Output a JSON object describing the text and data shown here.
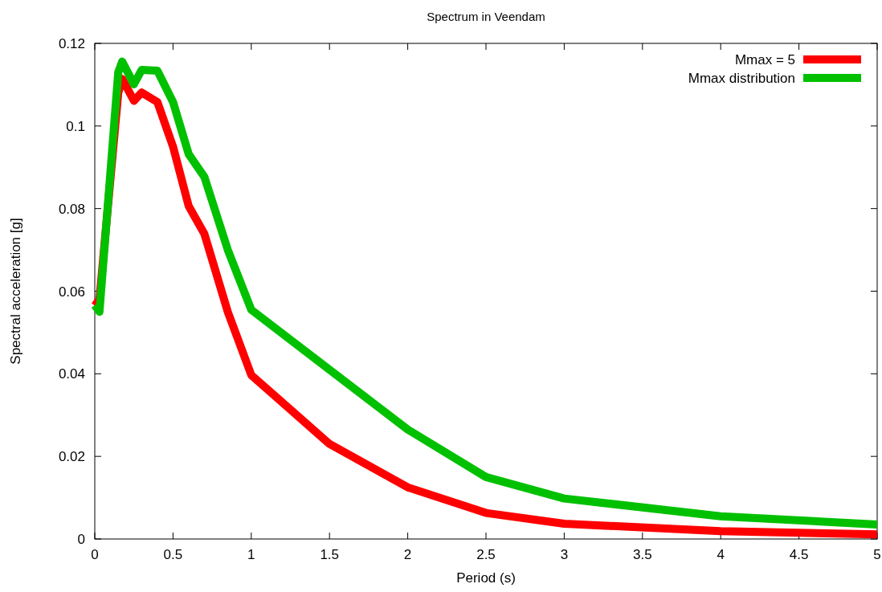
{
  "chart_data": {
    "type": "line",
    "title": "Spectrum in Veendam",
    "xlabel": "Period (s)",
    "ylabel": "Spectral acceleration [g]",
    "x": [
      0,
      0.03,
      0.15,
      0.175,
      0.25,
      0.3,
      0.4,
      0.5,
      0.6,
      0.7,
      0.85,
      1,
      1.5,
      2,
      2.5,
      3,
      4,
      5
    ],
    "series": [
      {
        "name": "Mmax = 5",
        "color": "#ff0000",
        "values": [
          0.0565,
          0.058,
          0.108,
          0.1114,
          0.1061,
          0.1081,
          0.1058,
          0.095,
          0.0806,
          0.0739,
          0.055,
          0.0397,
          0.023,
          0.0125,
          0.0063,
          0.0037,
          0.0019,
          0.0011
        ]
      },
      {
        "name": "Mmax distribution",
        "color": "#00c000",
        "values": [
          0.0566,
          0.055,
          0.113,
          0.1156,
          0.1101,
          0.1136,
          0.1134,
          0.1058,
          0.0932,
          0.0877,
          0.07,
          0.0555,
          0.041,
          0.0265,
          0.015,
          0.0098,
          0.0055,
          0.0035
        ]
      }
    ],
    "xlim": [
      0,
      5
    ],
    "xticks": [
      0,
      0.5,
      1,
      1.5,
      2,
      2.5,
      3,
      3.5,
      4,
      4.5,
      5
    ],
    "ylim": [
      0,
      0.12
    ],
    "yticks": [
      0,
      0.02,
      0.04,
      0.06,
      0.08,
      0.1,
      0.12
    ],
    "legend": "top right",
    "line_style": "solid"
  }
}
